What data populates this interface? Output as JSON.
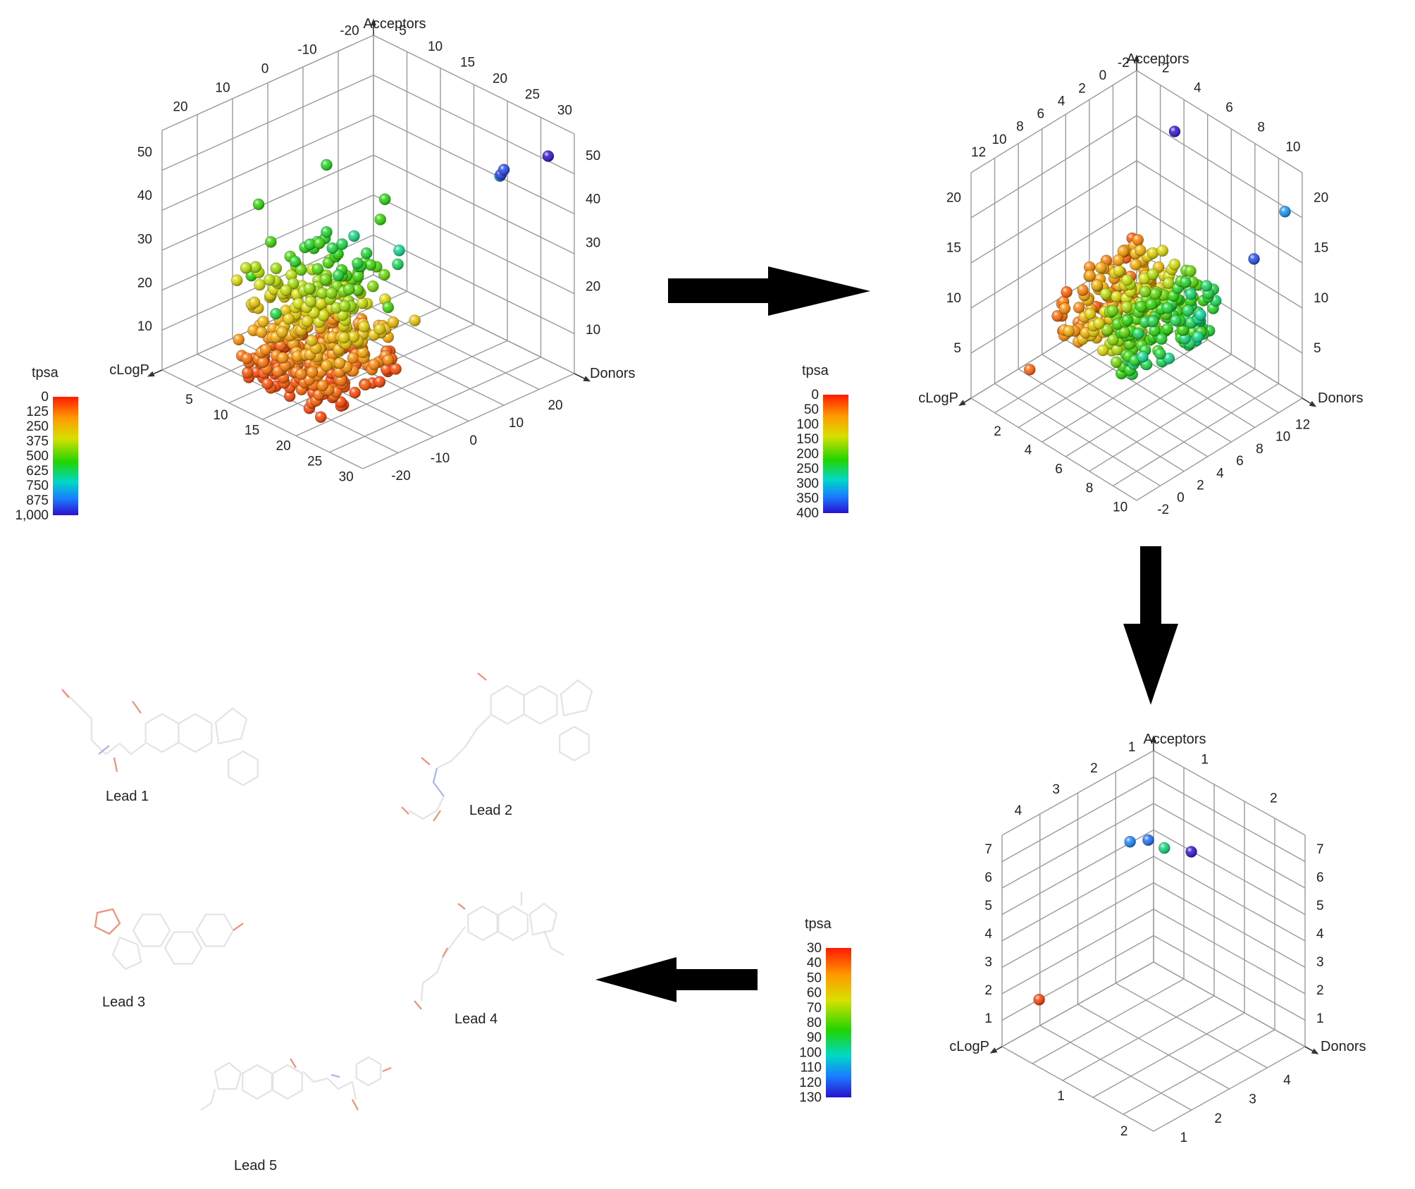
{
  "colors": {
    "arrow": "#000000",
    "grid": "#9a9a9a",
    "molecule": "#e3e3e3",
    "hetero_o": "#f0907a",
    "hetero_n": "#a9b4ee"
  },
  "chart_data": [
    {
      "type": "scatter",
      "subtype": "3d-scatter",
      "axes": {
        "x": "cLogP",
        "y": "Donors",
        "z": "Acceptors"
      },
      "x_ticks": [
        "5",
        "10",
        "15",
        "20",
        "25",
        "30"
      ],
      "y_ticks": [
        "-20",
        "-10",
        "0",
        "10",
        "20"
      ],
      "z_ticks": [
        "10",
        "20",
        "30",
        "40",
        "50"
      ],
      "z_back_ticks": [
        "10",
        "20",
        "30",
        "40",
        "50"
      ],
      "top_left_ticks": [
        "20",
        "10",
        "0",
        "-10",
        "-20"
      ],
      "top_right_ticks": [
        "5",
        "10",
        "15",
        "20",
        "25",
        "30"
      ],
      "colorbar": {
        "label": "tpsa",
        "ticks": [
          "0",
          "125",
          "250",
          "375",
          "500",
          "625",
          "750",
          "875",
          "1,000"
        ],
        "range": [
          0,
          1000
        ]
      },
      "ranges": {
        "x": [
          0,
          30
        ],
        "y": [
          -25,
          25
        ],
        "z": [
          0,
          55
        ]
      },
      "grid": true,
      "points": {
        "count": 420,
        "seed": 11,
        "description_free": true
      }
    },
    {
      "type": "scatter",
      "subtype": "3d-scatter",
      "axes": {
        "x": "cLogP",
        "y": "Donors",
        "z": "Acceptors"
      },
      "x_ticks": [
        "2",
        "4",
        "6",
        "8",
        "10"
      ],
      "y_ticks": [
        "-2",
        "0",
        "2",
        "4",
        "6",
        "8",
        "10",
        "12"
      ],
      "z_ticks": [
        "5",
        "10",
        "15",
        "20"
      ],
      "z_back_ticks": [
        "5",
        "10",
        "15",
        "20"
      ],
      "top_left_ticks": [
        "12",
        "10",
        "8",
        "6",
        "4",
        "2",
        "0",
        "-2"
      ],
      "top_right_ticks": [
        "2",
        "4",
        "6",
        "8",
        "10"
      ],
      "colorbar": {
        "label": "tpsa",
        "ticks": [
          "0",
          "50",
          "100",
          "150",
          "200",
          "250",
          "300",
          "350",
          "400"
        ],
        "range": [
          0,
          400
        ]
      },
      "ranges": {
        "x": [
          0,
          12
        ],
        "y": [
          -3,
          13
        ],
        "z": [
          0,
          22
        ]
      },
      "grid": true,
      "points": {
        "count": 330,
        "seed": 29
      }
    },
    {
      "type": "scatter",
      "subtype": "3d-scatter",
      "axes": {
        "x": "cLogP",
        "y": "Donors",
        "z": "Acceptors"
      },
      "x_ticks": [
        "1",
        "2"
      ],
      "y_ticks": [
        "1",
        "2",
        "3",
        "4"
      ],
      "z_ticks": [
        "1",
        "2",
        "3",
        "4",
        "5",
        "6",
        "7"
      ],
      "z_back_ticks": [
        "1",
        "2",
        "3",
        "4",
        "5",
        "6",
        "7"
      ],
      "top_left_ticks": [
        "4",
        "3",
        "2",
        "1"
      ],
      "top_right_ticks": [
        "1",
        "2"
      ],
      "colorbar": {
        "label": "tpsa",
        "ticks": [
          "30",
          "40",
          "50",
          "60",
          "70",
          "80",
          "90",
          "100",
          "110",
          "120",
          "130"
        ],
        "range": [
          30,
          130
        ]
      },
      "ranges": {
        "x": [
          0,
          2.5
        ],
        "y": [
          0,
          4.5
        ],
        "z": [
          0,
          7.5
        ]
      },
      "grid": true,
      "points": {
        "list": [
          {
            "tpsa": 35,
            "x": 2.0,
            "y": 0.2,
            "z": 1.2
          },
          {
            "tpsa": 118,
            "x": 0.2,
            "y": 0.2,
            "z": 4.7
          },
          {
            "tpsa": 115,
            "x": 0.5,
            "y": 0.2,
            "z": 5.0
          },
          {
            "tpsa": 95,
            "x": 0.1,
            "y": 0.5,
            "z": 4.5
          },
          {
            "tpsa": 130,
            "x": 0.1,
            "y": 1.3,
            "z": 4.9
          }
        ]
      }
    }
  ],
  "leads": [
    {
      "label": "Lead 1"
    },
    {
      "label": "Lead 2"
    },
    {
      "label": "Lead 3"
    },
    {
      "label": "Lead 4"
    },
    {
      "label": "Lead 5"
    }
  ]
}
